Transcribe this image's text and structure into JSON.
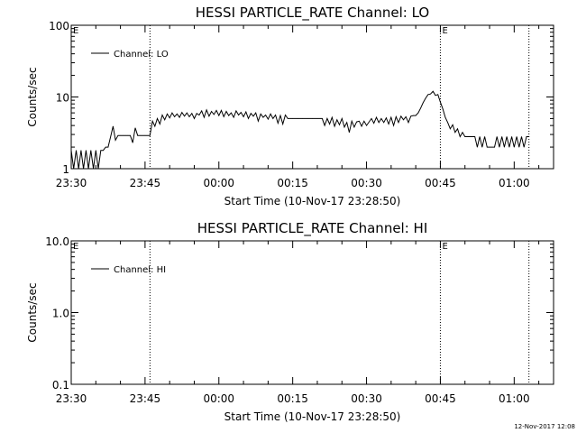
{
  "footer": {
    "timestamp": "12-Nov-2017 12:08"
  },
  "chart_data": [
    {
      "type": "line",
      "title": "HESSI PARTICLE_RATE Channel: LO",
      "xlabel": "Start Time (10-Nov-17 23:28:50)",
      "ylabel": "Counts/sec",
      "y_scale": "log",
      "ylim": [
        1,
        100
      ],
      "y_ticks": [
        "1",
        "10",
        "100"
      ],
      "xlim": [
        "23:30",
        "01:08"
      ],
      "x_ticks": [
        "23:30",
        "23:45",
        "00:00",
        "00:15",
        "00:30",
        "00:45",
        "01:00"
      ],
      "grid": false,
      "legend_position": "top-left",
      "event_lines": [
        "23:46",
        "00:45",
        "01:03"
      ],
      "event_markers": [
        {
          "time": "23:30",
          "label": "E"
        },
        {
          "time": "00:45",
          "label": "E"
        }
      ],
      "series": [
        {
          "name": "Channel: LO",
          "points": [
            [
              "23:30",
              1.8
            ],
            [
              "23:30:30",
              1.0
            ],
            [
              "23:31",
              1.8
            ],
            [
              "23:31:30",
              1.0
            ],
            [
              "23:32",
              1.8
            ],
            [
              "23:32:30",
              1.0
            ],
            [
              "23:33",
              1.8
            ],
            [
              "23:33:30",
              1.0
            ],
            [
              "23:34",
              1.8
            ],
            [
              "23:34:30",
              1.0
            ],
            [
              "23:35",
              1.8
            ],
            [
              "23:35:30",
              1.0
            ],
            [
              "23:36",
              1.8
            ],
            [
              "23:36:30",
              1.8
            ],
            [
              "23:37",
              2.0
            ],
            [
              "23:37:30",
              2.0
            ],
            [
              "23:38",
              2.8
            ],
            [
              "23:38:30",
              3.9
            ],
            [
              "23:39",
              2.5
            ],
            [
              "23:39:30",
              2.9
            ],
            [
              "23:40",
              2.9
            ],
            [
              "23:40:30",
              2.9
            ],
            [
              "23:41",
              2.9
            ],
            [
              "23:41:30",
              2.9
            ],
            [
              "23:42",
              2.9
            ],
            [
              "23:42:30",
              2.3
            ],
            [
              "23:43",
              3.7
            ],
            [
              "23:43:30",
              2.9
            ],
            [
              "23:44",
              2.9
            ],
            [
              "23:45",
              2.9
            ],
            [
              "23:46",
              2.9
            ],
            [
              "23:46:30",
              4.6
            ],
            [
              "23:47",
              3.9
            ],
            [
              "23:47:30",
              5.0
            ],
            [
              "23:48",
              4.2
            ],
            [
              "23:48:30",
              5.6
            ],
            [
              "23:49",
              4.8
            ],
            [
              "23:49:30",
              5.8
            ],
            [
              "23:50",
              5.1
            ],
            [
              "23:50:30",
              6.0
            ],
            [
              "23:51",
              5.3
            ],
            [
              "23:51:30",
              5.8
            ],
            [
              "23:52",
              5.2
            ],
            [
              "23:52:30",
              6.1
            ],
            [
              "23:53",
              5.4
            ],
            [
              "23:53:30",
              6.0
            ],
            [
              "23:54",
              5.3
            ],
            [
              "23:54:30",
              5.9
            ],
            [
              "23:55",
              5.0
            ],
            [
              "23:55:30",
              5.9
            ],
            [
              "23:56",
              5.6
            ],
            [
              "23:56:30",
              6.4
            ],
            [
              "23:57",
              5.2
            ],
            [
              "23:57:30",
              6.6
            ],
            [
              "23:58",
              5.4
            ],
            [
              "23:58:30",
              6.3
            ],
            [
              "23:59",
              5.7
            ],
            [
              "23:59:30",
              6.5
            ],
            [
              "00:00",
              5.5
            ],
            [
              "00:00:30",
              6.5
            ],
            [
              "00:01",
              5.3
            ],
            [
              "00:01:30",
              6.3
            ],
            [
              "00:02",
              5.5
            ],
            [
              "00:02:30",
              6.0
            ],
            [
              "00:03",
              5.2
            ],
            [
              "00:03:30",
              6.4
            ],
            [
              "00:04",
              5.6
            ],
            [
              "00:04:30",
              6.1
            ],
            [
              "00:05",
              5.3
            ],
            [
              "00:05:30",
              6.2
            ],
            [
              "00:06",
              5.0
            ],
            [
              "00:06:30",
              5.9
            ],
            [
              "00:07",
              5.4
            ],
            [
              "00:07:30",
              6.0
            ],
            [
              "00:08",
              4.6
            ],
            [
              "00:08:30",
              5.8
            ],
            [
              "00:09",
              5.2
            ],
            [
              "00:09:30",
              5.6
            ],
            [
              "00:10",
              4.9
            ],
            [
              "00:10:30",
              5.8
            ],
            [
              "00:11",
              5.0
            ],
            [
              "00:11:30",
              5.6
            ],
            [
              "00:12",
              4.3
            ],
            [
              "00:12:30",
              5.5
            ],
            [
              "00:13",
              4.2
            ],
            [
              "00:13:30",
              5.6
            ],
            [
              "00:14",
              5.0
            ],
            [
              "00:15",
              5.0
            ],
            [
              "00:16",
              5.0
            ],
            [
              "00:17",
              5.0
            ],
            [
              "00:18",
              5.0
            ],
            [
              "00:19",
              5.0
            ],
            [
              "00:20",
              5.0
            ],
            [
              "00:21",
              5.0
            ],
            [
              "00:21:30",
              4.0
            ],
            [
              "00:22",
              5.0
            ],
            [
              "00:22:30",
              4.2
            ],
            [
              "00:23",
              5.2
            ],
            [
              "00:23:30",
              3.9
            ],
            [
              "00:24",
              4.8
            ],
            [
              "00:24:30",
              4.1
            ],
            [
              "00:25",
              5.0
            ],
            [
              "00:25:30",
              3.8
            ],
            [
              "00:26",
              4.4
            ],
            [
              "00:26:30",
              3.2
            ],
            [
              "00:27",
              4.6
            ],
            [
              "00:27:30",
              3.8
            ],
            [
              "00:28",
              4.5
            ],
            [
              "00:28:30",
              4.6
            ],
            [
              "00:29",
              3.9
            ],
            [
              "00:29:30",
              4.6
            ],
            [
              "00:30",
              4.0
            ],
            [
              "00:31",
              5.0
            ],
            [
              "00:31:30",
              4.3
            ],
            [
              "00:32",
              5.2
            ],
            [
              "00:32:30",
              4.4
            ],
            [
              "00:33",
              5.0
            ],
            [
              "00:33:30",
              4.4
            ],
            [
              "00:34",
              5.1
            ],
            [
              "00:34:30",
              4.2
            ],
            [
              "00:35",
              5.2
            ],
            [
              "00:35:30",
              4.0
            ],
            [
              "00:36",
              5.3
            ],
            [
              "00:36:30",
              4.4
            ],
            [
              "00:37",
              5.4
            ],
            [
              "00:37:30",
              4.8
            ],
            [
              "00:38",
              5.3
            ],
            [
              "00:38:30",
              4.4
            ],
            [
              "00:39",
              5.4
            ],
            [
              "00:39:30",
              5.5
            ],
            [
              "00:40",
              5.5
            ],
            [
              "00:40:30",
              6.0
            ],
            [
              "00:41",
              7.0
            ],
            [
              "00:41:30",
              8.3
            ],
            [
              "00:42",
              9.6
            ],
            [
              "00:42:30",
              10.8
            ],
            [
              "00:43",
              11.0
            ],
            [
              "00:43:30",
              12.0
            ],
            [
              "00:44",
              10.5
            ],
            [
              "00:44:30",
              10.8
            ],
            [
              "00:45",
              8.5
            ],
            [
              "00:45:30",
              6.8
            ],
            [
              "00:46",
              5.2
            ],
            [
              "00:46:30",
              4.4
            ],
            [
              "00:47",
              3.6
            ],
            [
              "00:47:30",
              4.1
            ],
            [
              "00:48",
              3.2
            ],
            [
              "00:48:30",
              3.6
            ],
            [
              "00:49",
              2.8
            ],
            [
              "00:49:30",
              3.2
            ],
            [
              "00:50",
              2.8
            ],
            [
              "00:51",
              2.8
            ],
            [
              "00:52",
              2.8
            ],
            [
              "00:52:30",
              2.0
            ],
            [
              "00:53",
              2.8
            ],
            [
              "00:53:30",
              2.0
            ],
            [
              "00:54",
              2.8
            ],
            [
              "00:54:30",
              2.0
            ],
            [
              "00:55",
              2.0
            ],
            [
              "00:56",
              2.0
            ],
            [
              "00:56:30",
              2.8
            ],
            [
              "00:57",
              2.0
            ],
            [
              "00:57:30",
              2.8
            ],
            [
              "00:58",
              2.0
            ],
            [
              "00:58:30",
              2.8
            ],
            [
              "00:59",
              2.0
            ],
            [
              "00:59:30",
              2.8
            ],
            [
              "01:00",
              2.0
            ],
            [
              "01:00:30",
              2.8
            ],
            [
              "01:01",
              2.0
            ],
            [
              "01:01:30",
              2.8
            ],
            [
              "01:02",
              2.0
            ],
            [
              "01:02:30",
              2.8
            ],
            [
              "01:03",
              2.8
            ]
          ]
        }
      ]
    },
    {
      "type": "line",
      "title": "HESSI PARTICLE_RATE Channel: HI",
      "xlabel": "Start Time (10-Nov-17 23:28:50)",
      "ylabel": "Counts/sec",
      "y_scale": "log",
      "ylim": [
        0.1,
        10
      ],
      "y_ticks": [
        "0.1",
        "1.0",
        "10.0"
      ],
      "xlim": [
        "23:30",
        "01:08"
      ],
      "x_ticks": [
        "23:30",
        "23:45",
        "00:00",
        "00:15",
        "00:30",
        "00:45",
        "01:00"
      ],
      "grid": false,
      "legend_position": "top-left",
      "event_lines": [
        "23:46",
        "00:45",
        "01:03"
      ],
      "event_markers": [
        {
          "time": "23:30",
          "label": "E"
        },
        {
          "time": "00:45",
          "label": "E"
        }
      ],
      "series": [
        {
          "name": "Channel: HI",
          "points": []
        }
      ]
    }
  ]
}
